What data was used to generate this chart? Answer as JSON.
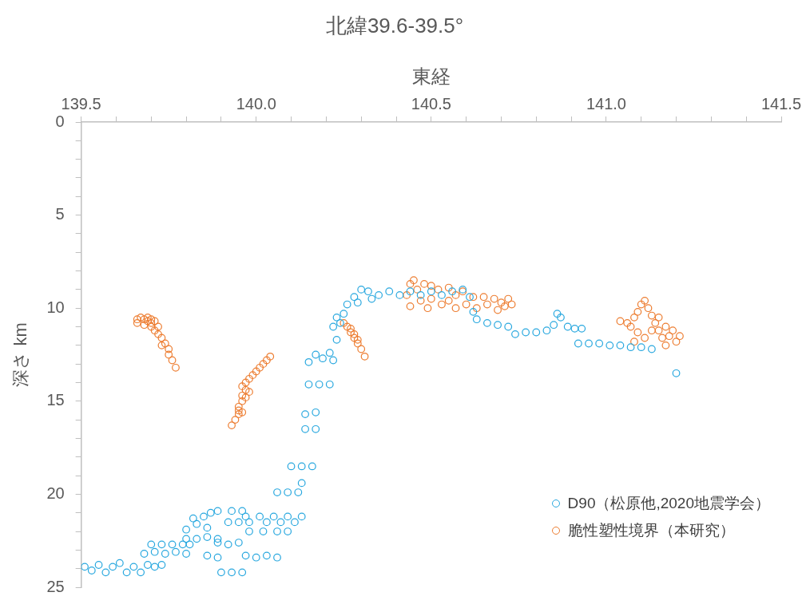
{
  "chart_data": {
    "type": "scatter",
    "title": "北緯39.6-39.5°",
    "xlabel": "東経",
    "ylabel": "深さ km",
    "xlim": [
      139.5,
      141.5
    ],
    "ylim": [
      25,
      0
    ],
    "xticks": [
      {
        "value": 139.5,
        "label": "139.5"
      },
      {
        "value": 139.6,
        "label": null
      },
      {
        "value": 139.7,
        "label": null
      },
      {
        "value": 139.8,
        "label": null
      },
      {
        "value": 139.9,
        "label": null
      },
      {
        "value": 140,
        "label": "140.0"
      },
      {
        "value": 140.1,
        "label": null
      },
      {
        "value": 140.2,
        "label": null
      },
      {
        "value": 140.3,
        "label": null
      },
      {
        "value": 140.4,
        "label": null
      },
      {
        "value": 140.5,
        "label": "140.5"
      },
      {
        "value": 140.6,
        "label": null
      },
      {
        "value": 140.7,
        "label": null
      },
      {
        "value": 140.8,
        "label": null
      },
      {
        "value": 140.9,
        "label": null
      },
      {
        "value": 141,
        "label": "141.0"
      },
      {
        "value": 141.1,
        "label": null
      },
      {
        "value": 141.2,
        "label": null
      },
      {
        "value": 141.3,
        "label": null
      },
      {
        "value": 141.4,
        "label": null
      },
      {
        "value": 141.5,
        "label": "141.5"
      }
    ],
    "yticks": [
      0,
      {
        "value": 1,
        "label": null
      },
      {
        "value": 2,
        "label": null
      },
      {
        "value": 3,
        "label": null
      },
      {
        "value": 4,
        "label": null
      },
      5,
      {
        "value": 6,
        "label": null
      },
      {
        "value": 7,
        "label": null
      },
      {
        "value": 8,
        "label": null
      },
      {
        "value": 9,
        "label": null
      },
      10,
      {
        "value": 11,
        "label": null
      },
      {
        "value": 12,
        "label": null
      },
      {
        "value": 13,
        "label": null
      },
      {
        "value": 14,
        "label": null
      },
      15,
      {
        "value": 16,
        "label": null
      },
      {
        "value": 17,
        "label": null
      },
      {
        "value": 18,
        "label": null
      },
      {
        "value": 19,
        "label": null
      },
      20,
      {
        "value": 21,
        "label": null
      },
      {
        "value": 22,
        "label": null
      },
      {
        "value": 23,
        "label": null
      },
      {
        "value": 24,
        "label": null
      },
      25
    ],
    "grid": false,
    "legend": "bottom right",
    "marker": "circle",
    "series": [
      {
        "name": "D90（松原他,2020地震学会）",
        "color": "#29a8df",
        "x": [
          139.51,
          139.53,
          139.55,
          139.57,
          139.59,
          139.61,
          139.63,
          139.65,
          139.67,
          139.69,
          139.71,
          139.73,
          139.68,
          139.71,
          139.74,
          139.77,
          139.8,
          139.7,
          139.73,
          139.76,
          139.79,
          139.81,
          139.8,
          139.83,
          139.86,
          139.89,
          139.8,
          139.83,
          139.85,
          139.87,
          139.82,
          139.86,
          139.89,
          139.89,
          139.92,
          139.95,
          139.86,
          139.89,
          139.92,
          139.95,
          139.98,
          140.03,
          140.07,
          140.11,
          139.97,
          140.01,
          140.05,
          140.09,
          140.13,
          139.98,
          140.02,
          140.06,
          140.09,
          139.97,
          140.0,
          140.03,
          140.06,
          139.9,
          139.93,
          139.96,
          139.93,
          139.96,
          140.06,
          140.09,
          140.12,
          140.13,
          140.1,
          140.13,
          140.16,
          140.14,
          140.17,
          140.14,
          140.17,
          140.15,
          140.18,
          140.21,
          140.15,
          140.17,
          140.19,
          140.21,
          140.22,
          140.23,
          140.22,
          140.23,
          140.25,
          140.24,
          140.26,
          140.28,
          140.3,
          140.32,
          140.35,
          140.38,
          140.41,
          140.44,
          140.47,
          140.5,
          140.53,
          140.56,
          140.59,
          140.61,
          140.29,
          140.33,
          140.62,
          140.63,
          140.66,
          140.69,
          140.72,
          140.74,
          140.77,
          140.8,
          140.83,
          140.85,
          140.86,
          140.87,
          140.89,
          140.91,
          140.93,
          140.92,
          140.95,
          140.98,
          141.01,
          141.04,
          141.07,
          141.1,
          141.13,
          141.2
        ],
        "values": [
          23.9,
          24.1,
          23.8,
          24.2,
          23.9,
          23.7,
          24.2,
          23.9,
          24.2,
          23.8,
          23.9,
          23.8,
          23.2,
          23.1,
          23.2,
          23.1,
          23.2,
          22.7,
          22.7,
          22.7,
          22.7,
          22.7,
          22.4,
          22.4,
          22.3,
          22.4,
          21.9,
          21.6,
          21.2,
          21.0,
          21.3,
          21.8,
          20.9,
          22.6,
          22.7,
          22.6,
          23.3,
          23.4,
          21.5,
          21.5,
          21.5,
          21.5,
          21.5,
          21.5,
          21.2,
          21.2,
          21.2,
          21.2,
          21.2,
          22.0,
          22.0,
          22.0,
          22.0,
          23.3,
          23.4,
          23.3,
          23.4,
          24.2,
          24.2,
          24.2,
          20.9,
          20.9,
          19.9,
          19.9,
          19.9,
          19.4,
          18.5,
          18.5,
          18.5,
          16.5,
          16.5,
          15.7,
          15.6,
          14.1,
          14.1,
          14.1,
          12.9,
          12.5,
          12.7,
          12.4,
          12.8,
          11.7,
          11.0,
          10.5,
          10.3,
          10.8,
          9.8,
          9.4,
          9.0,
          9.1,
          9.3,
          9.1,
          9.3,
          9.1,
          9.3,
          9.1,
          9.3,
          9.1,
          9.0,
          9.4,
          9.7,
          9.5,
          10.2,
          10.6,
          10.8,
          10.9,
          11.0,
          11.4,
          11.3,
          11.3,
          11.2,
          10.9,
          10.3,
          10.5,
          11.0,
          11.1,
          11.1,
          11.9,
          11.9,
          11.9,
          12.0,
          12.0,
          12.1,
          12.1,
          12.2,
          13.5
        ]
      },
      {
        "name": "脆性塑性境界（本研究）",
        "color": "#ed7d31",
        "x": [
          139.66,
          139.67,
          139.68,
          139.69,
          139.7,
          139.71,
          139.66,
          139.68,
          139.7,
          139.71,
          139.72,
          139.72,
          139.73,
          139.74,
          139.73,
          139.75,
          139.75,
          139.76,
          139.77,
          139.69,
          139.7,
          139.93,
          139.94,
          139.95,
          139.95,
          139.96,
          139.96,
          139.97,
          139.96,
          139.97,
          139.98,
          139.99,
          140.0,
          140.01,
          140.02,
          140.03,
          140.04,
          139.95,
          139.97,
          139.98,
          139.96,
          140.25,
          140.26,
          140.27,
          140.28,
          140.29,
          140.3,
          140.31,
          140.27,
          140.28,
          140.29,
          140.43,
          140.44,
          140.45,
          140.46,
          140.47,
          140.48,
          140.5,
          140.5,
          140.52,
          140.53,
          140.55,
          140.55,
          140.57,
          140.57,
          140.59,
          140.6,
          140.62,
          140.63,
          140.65,
          140.66,
          140.68,
          140.69,
          140.7,
          140.71,
          140.72,
          140.73,
          140.44,
          140.49,
          141.04,
          141.06,
          141.07,
          141.08,
          141.09,
          141.1,
          141.11,
          141.12,
          141.13,
          141.14,
          141.15,
          141.16,
          141.17,
          141.18,
          141.19,
          141.2,
          141.21,
          141.09,
          141.11,
          141.13,
          141.15,
          141.17,
          141.08
        ],
        "values": [
          10.6,
          10.5,
          10.6,
          10.5,
          10.6,
          10.7,
          10.8,
          10.9,
          11.0,
          11.2,
          11.0,
          11.4,
          11.6,
          11.9,
          12.0,
          12.2,
          12.5,
          12.8,
          13.2,
          10.7,
          10.8,
          16.3,
          16.0,
          15.7,
          15.3,
          15.0,
          14.7,
          14.4,
          14.2,
          14.0,
          13.8,
          13.6,
          13.4,
          13.2,
          13.0,
          12.8,
          12.6,
          15.5,
          14.8,
          14.5,
          15.6,
          10.8,
          11.0,
          11.3,
          11.6,
          11.9,
          12.2,
          12.6,
          11.1,
          11.4,
          11.7,
          9.3,
          8.7,
          8.5,
          9.0,
          9.6,
          8.7,
          8.8,
          9.5,
          9.0,
          9.8,
          8.9,
          9.6,
          9.3,
          10.0,
          9.1,
          9.8,
          9.4,
          10.0,
          9.4,
          9.8,
          9.5,
          10.1,
          9.7,
          9.9,
          9.5,
          9.8,
          9.9,
          10.0,
          10.7,
          10.8,
          11.0,
          10.5,
          10.2,
          9.8,
          9.6,
          10.0,
          10.4,
          10.8,
          11.2,
          11.6,
          12.0,
          11.5,
          11.2,
          11.8,
          11.5,
          11.3,
          11.6,
          11.2,
          10.5,
          11.0,
          11.8
        ]
      }
    ]
  }
}
